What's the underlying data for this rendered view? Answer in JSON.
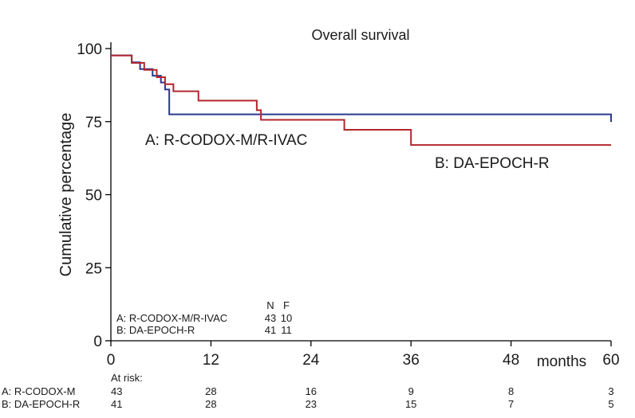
{
  "chart_data": {
    "type": "line",
    "subtype": "kaplan-meier step",
    "title": "Overall survival",
    "xlabel": "months",
    "ylabel": "Cumulative percentage",
    "xlim": [
      0,
      60
    ],
    "ylim": [
      0,
      100
    ],
    "x_ticks": [
      0,
      12,
      24,
      36,
      48,
      60
    ],
    "y_ticks": [
      0,
      25,
      50,
      75,
      100
    ],
    "grid": false,
    "series": [
      {
        "name": "A: R-CODOX-M/R-IVAC",
        "color": "#2a3a8c",
        "x": [
          0,
          2.5,
          3.5,
          5,
          6,
          6.5,
          7,
          60
        ],
        "y": [
          97.7,
          95.3,
          93.0,
          90.7,
          88.4,
          86.0,
          77.5,
          74.9
        ]
      },
      {
        "name": "B: DA-EPOCH-R",
        "color": "#b3262d",
        "x": [
          0,
          2.5,
          4,
          5.5,
          6.5,
          7.5,
          10.5,
          17.5,
          18,
          28,
          36,
          60
        ],
        "y": [
          97.6,
          95.1,
          92.7,
          90.2,
          87.8,
          85.4,
          82.2,
          78.9,
          75.6,
          72.2,
          67.0,
          67.0
        ]
      }
    ],
    "legend_table": {
      "headers": [
        "N",
        "F"
      ],
      "rows": [
        {
          "label": "A: R-CODOX-M/R-IVAC",
          "n": "43",
          "f": "10"
        },
        {
          "label": "B: DA-EPOCH-R",
          "n": "41",
          "f": "11"
        }
      ]
    },
    "curve_labels": [
      {
        "text": "A: R-CODOX-M/R-IVAC",
        "color": "#2a3a8c"
      },
      {
        "text": "B: DA-EPOCH-R",
        "color": "#b3262d"
      }
    ],
    "at_risk": {
      "title": "At risk:",
      "rows": [
        {
          "label": "A: R-CODOX-M",
          "values": [
            "43",
            "28",
            "16",
            "9",
            "8",
            "3"
          ]
        },
        {
          "label": "B: DA-EPOCH-R",
          "values": [
            "41",
            "28",
            "23",
            "15",
            "7",
            "5"
          ]
        }
      ]
    }
  }
}
